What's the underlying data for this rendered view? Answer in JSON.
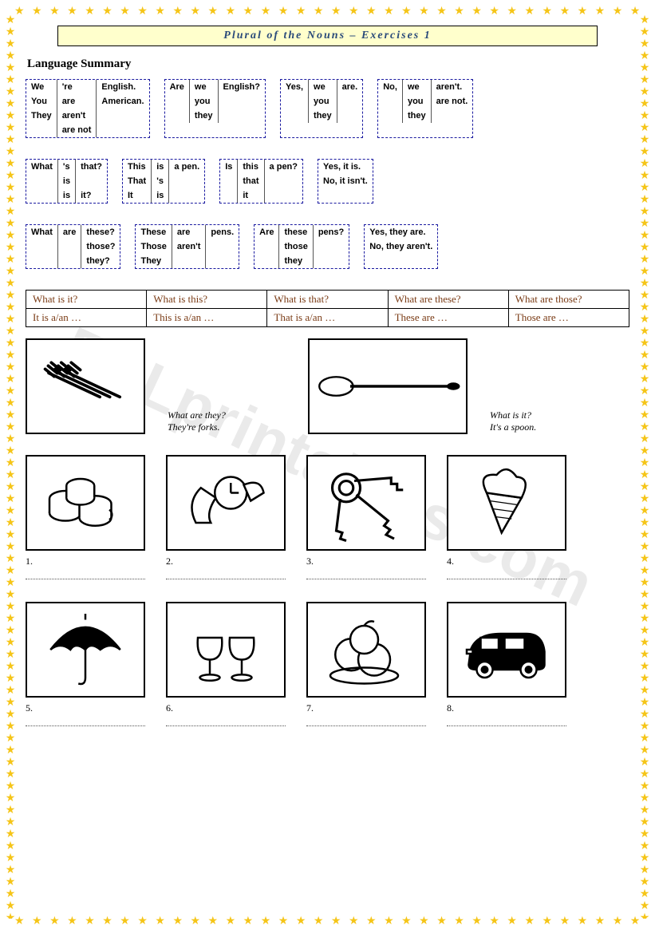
{
  "title": "Plural of the Nouns – Exercises 1",
  "section_heading": "Language Summary",
  "watermark": "ESLprintables.com",
  "grammar_rows": [
    {
      "boxes": [
        {
          "cols": [
            [
              "We",
              "You",
              "They"
            ],
            [
              "'re",
              "are",
              "aren't",
              "are not"
            ],
            [
              "English.",
              "American."
            ]
          ]
        },
        {
          "cols": [
            [
              "Are"
            ],
            [
              "we",
              "you",
              "they"
            ],
            [
              "English?"
            ]
          ]
        },
        {
          "cols": [
            [
              "Yes,"
            ],
            [
              "we",
              "you",
              "they"
            ],
            [
              "are."
            ]
          ]
        },
        {
          "cols": [
            [
              "No,"
            ],
            [
              "we",
              "you",
              "they"
            ],
            [
              "aren't.",
              "are not."
            ]
          ]
        }
      ]
    },
    {
      "boxes": [
        {
          "cols": [
            [
              "What"
            ],
            [
              "'s",
              "is",
              "is"
            ],
            [
              "that?",
              "",
              "it?"
            ]
          ]
        },
        {
          "cols": [
            [
              "This",
              "That",
              "It"
            ],
            [
              "is",
              "'s",
              "is"
            ],
            [
              "a pen."
            ]
          ]
        },
        {
          "cols": [
            [
              "Is"
            ],
            [
              "this",
              "that",
              "it"
            ],
            [
              "a pen?"
            ]
          ]
        },
        {
          "plain": true,
          "cols": [
            [
              "Yes, it is.",
              "No, it isn't."
            ]
          ]
        }
      ]
    },
    {
      "boxes": [
        {
          "cols": [
            [
              "What"
            ],
            [
              "are"
            ],
            [
              "these?",
              "those?",
              "they?"
            ]
          ]
        },
        {
          "cols": [
            [
              "These",
              "Those",
              "They"
            ],
            [
              "are",
              "aren't"
            ],
            [
              "pens."
            ]
          ]
        },
        {
          "cols": [
            [
              "Are"
            ],
            [
              "these",
              "those",
              "they"
            ],
            [
              "pens?"
            ]
          ]
        },
        {
          "plain": true,
          "cols": [
            [
              "Yes, they are.",
              "No, they aren't."
            ]
          ]
        }
      ]
    }
  ],
  "ref_table": {
    "rows": [
      [
        "What is it?",
        "What is this?",
        "What is that?",
        "What are these?",
        "What are those?"
      ],
      [
        "It is a/an …",
        "This is a/an …",
        "That is a/an …",
        "These are …",
        "Those are …"
      ]
    ]
  },
  "example_row": {
    "left": {
      "icon": "forks",
      "q": "What are they?",
      "a": "They're forks."
    },
    "right": {
      "icon": "spoon",
      "q": "What is it?",
      "a": "It's a spoon."
    }
  },
  "pic_rows": [
    {
      "items": [
        {
          "n": "1",
          "icon": "cups"
        },
        {
          "n": "2",
          "icon": "watch"
        },
        {
          "n": "3",
          "icon": "keys"
        },
        {
          "n": "4",
          "icon": "icecream"
        }
      ]
    },
    {
      "items": [
        {
          "n": "5",
          "icon": "umbrella"
        },
        {
          "n": "6",
          "icon": "glasses"
        },
        {
          "n": "7",
          "icon": "apples"
        },
        {
          "n": "8",
          "icon": "car"
        }
      ]
    }
  ],
  "colors": {
    "star": "#f5c518",
    "dash_border": "#1a1aa0",
    "title_bg": "#ffffcc",
    "title_text": "#2a4a7a",
    "ref_text": "#7a3b15"
  }
}
